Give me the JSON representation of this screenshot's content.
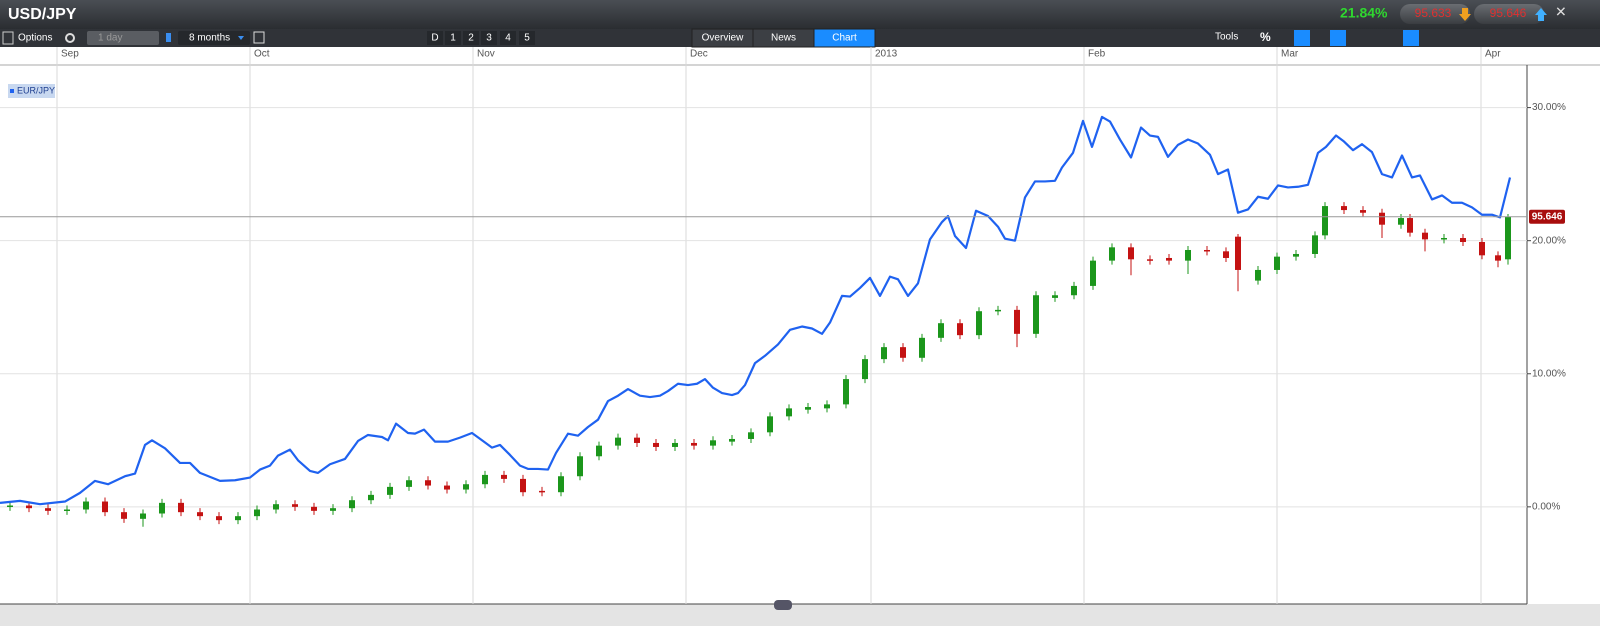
{
  "header": {
    "title": "USD/JPY",
    "change": "21.84%",
    "bid": "95.633",
    "ask": "95.646"
  },
  "toolbar": {
    "options": "Options",
    "interval": "1 day",
    "range": "8 months",
    "periods": [
      "D",
      "1",
      "2",
      "3",
      "4",
      "5"
    ],
    "tabs": [
      "Overview",
      "News",
      "Chart"
    ],
    "active_tab": "Chart",
    "tools": "Tools",
    "percent": "%"
  },
  "chart_data": {
    "type": "candlestick",
    "x": [
      1.0,
      2.9,
      4.8,
      6.7,
      8.6,
      10.5,
      12.4,
      14.3,
      16.2,
      18.1,
      20.0,
      21.9,
      23.8,
      25.7,
      27.6,
      29.5,
      31.4,
      33.3,
      35.2,
      37.1,
      39.0,
      40.9,
      42.8,
      44.7,
      46.6,
      48.5,
      50.4,
      52.3,
      54.2,
      56.1,
      58.0,
      59.9,
      61.8,
      63.7,
      65.6,
      67.5,
      69.4,
      71.3,
      73.2,
      75.1,
      77.0,
      78.9,
      80.8,
      82.7,
      84.6,
      86.5,
      88.4,
      90.3,
      92.2,
      94.1,
      96.0,
      97.9,
      99.8,
      101.7,
      103.6,
      105.5,
      107.4,
      109.3,
      111.2,
      113.1,
      115.0,
      116.9,
      118.8,
      120.7,
      122.6,
      123.8,
      125.8,
      127.7,
      129.6,
      131.5,
      132.5,
      134.4,
      136.3,
      138.2,
      140.1,
      141.0,
      142.5,
      144.4,
      146.3,
      148.2,
      149.8,
      150.8
    ],
    "open": [
      0.0,
      0.1,
      -0.1,
      -0.3,
      -0.2,
      0.4,
      -0.4,
      -0.9,
      -0.5,
      0.3,
      -0.4,
      -0.7,
      -1.0,
      -0.7,
      -0.2,
      0.2,
      0.0,
      -0.3,
      -0.1,
      0.5,
      0.9,
      1.5,
      2.0,
      1.6,
      1.3,
      1.7,
      2.4,
      2.1,
      1.2,
      1.1,
      2.3,
      3.8,
      4.6,
      5.2,
      4.8,
      4.5,
      4.8,
      4.6,
      4.9,
      5.1,
      5.6,
      6.8,
      7.3,
      7.4,
      7.7,
      9.6,
      11.1,
      12.0,
      11.2,
      12.7,
      13.8,
      12.9,
      14.7,
      14.8,
      13.0,
      15.7,
      15.9,
      16.6,
      18.5,
      19.5,
      18.6,
      18.7,
      18.5,
      19.3,
      19.2,
      20.3,
      17.0,
      17.8,
      18.8,
      19.0,
      20.4,
      22.6,
      22.3,
      22.1,
      21.2,
      21.7,
      20.6,
      20.1,
      20.2,
      19.9,
      18.9,
      18.6
    ],
    "high": [
      0.4,
      0.4,
      0.2,
      0.1,
      0.7,
      0.7,
      -0.1,
      -0.2,
      0.6,
      0.6,
      -0.1,
      -0.4,
      -0.4,
      0.1,
      0.5,
      0.5,
      0.3,
      0.2,
      0.8,
      1.2,
      1.8,
      2.3,
      2.3,
      1.9,
      2.0,
      2.7,
      2.7,
      2.4,
      1.5,
      2.6,
      4.1,
      4.9,
      5.5,
      5.5,
      5.1,
      5.1,
      5.1,
      5.3,
      5.4,
      5.9,
      7.1,
      7.7,
      7.8,
      8.0,
      9.9,
      11.4,
      12.3,
      12.3,
      13.0,
      14.1,
      14.1,
      15.0,
      15.1,
      15.1,
      16.2,
      16.2,
      16.9,
      18.8,
      19.8,
      19.8,
      18.9,
      19.0,
      19.6,
      19.6,
      19.5,
      20.5,
      18.1,
      19.1,
      19.3,
      20.7,
      22.9,
      22.9,
      22.6,
      22.4,
      22.0,
      22.0,
      20.9,
      20.5,
      20.5,
      20.2,
      19.2,
      22.0
    ],
    "low": [
      -0.3,
      -0.4,
      -0.6,
      -0.6,
      -0.5,
      -0.7,
      -1.2,
      -1.5,
      -0.8,
      -0.7,
      -1.0,
      -1.3,
      -1.3,
      -1.0,
      -0.5,
      -0.3,
      -0.6,
      -0.6,
      -0.4,
      0.2,
      0.6,
      1.2,
      1.3,
      1.0,
      1.0,
      1.4,
      1.8,
      0.8,
      0.8,
      0.8,
      2.0,
      3.5,
      4.3,
      4.5,
      4.2,
      4.2,
      4.3,
      4.3,
      4.6,
      4.8,
      5.3,
      6.5,
      7.0,
      7.1,
      7.4,
      9.3,
      10.8,
      10.9,
      10.9,
      12.4,
      12.6,
      12.6,
      14.4,
      12.0,
      12.7,
      15.4,
      15.6,
      16.3,
      18.2,
      17.4,
      18.2,
      18.2,
      17.5,
      18.9,
      18.4,
      16.2,
      16.7,
      17.5,
      18.5,
      18.7,
      20.1,
      22.0,
      21.8,
      20.2,
      20.9,
      20.3,
      19.2,
      19.8,
      19.6,
      18.6,
      18.0,
      18.2
    ],
    "close": [
      0.1,
      -0.1,
      -0.3,
      -0.2,
      0.4,
      -0.4,
      -0.9,
      -0.5,
      0.3,
      -0.4,
      -0.7,
      -1.0,
      -0.7,
      -0.2,
      0.2,
      0.0,
      -0.3,
      -0.1,
      0.5,
      0.9,
      1.5,
      2.0,
      1.6,
      1.3,
      1.7,
      2.4,
      2.1,
      1.1,
      1.1,
      2.3,
      3.8,
      4.6,
      5.2,
      4.8,
      4.5,
      4.8,
      4.6,
      5.0,
      5.1,
      5.6,
      6.8,
      7.4,
      7.5,
      7.7,
      9.6,
      11.1,
      12.0,
      11.2,
      12.7,
      13.8,
      12.9,
      14.7,
      14.8,
      13.0,
      15.9,
      15.9,
      16.6,
      18.5,
      19.5,
      18.6,
      18.5,
      18.5,
      19.3,
      19.2,
      18.7,
      17.8,
      17.8,
      18.8,
      19.0,
      20.4,
      22.6,
      22.3,
      22.1,
      21.2,
      21.7,
      20.6,
      20.1,
      20.2,
      19.9,
      18.9,
      18.5,
      21.8
    ],
    "up_color": "#1b961b",
    "down_color": "#c41212",
    "series": [
      {
        "name": "EUR/JPY",
        "color": "#1f62f0",
        "x": [
          0,
          2,
          4,
          6.5,
          8,
          9.5,
          10.8,
          12.5,
          13.5,
          14.5,
          15.2,
          16.5,
          18,
          19,
          20,
          22,
          23.5,
          25,
          26,
          27,
          27.8,
          29,
          29.8,
          31,
          31.8,
          33,
          34.5,
          35.8,
          36.8,
          38.2,
          38.8,
          39.6,
          40.8,
          41.5,
          42.4,
          43.5,
          44.8,
          46,
          47.2,
          48.3,
          49.2,
          50,
          51,
          52,
          52.8,
          53.8,
          54.8,
          55.6,
          56.8,
          57.8,
          58.8,
          59.8,
          60.8,
          61.8,
          62.8,
          64,
          65,
          66,
          66.8,
          67.8,
          68.8,
          69.7,
          70.5,
          71.3,
          72.2,
          73.2,
          73.8,
          74.5,
          75.5,
          76.5,
          77.8,
          79,
          80.2,
          81.2,
          82.2,
          83,
          84.2,
          85,
          86,
          87,
          88,
          89,
          89.8,
          90.8,
          91.8,
          93,
          94.2,
          94.8,
          95.5,
          96.6,
          97.6,
          98.8,
          99.8,
          100.5,
          101.5,
          102.5,
          103.5,
          104.5,
          105.5,
          106.2,
          107.3,
          108.3,
          109.2,
          110.2,
          111,
          112,
          113.1,
          114.1,
          115,
          115.8,
          116.8,
          117.8,
          118.8,
          119.8,
          121,
          121.8,
          122.8,
          123.8,
          124.8,
          125.8,
          126.8,
          127.8,
          128.8,
          129.8,
          130.8,
          131.8,
          132.6,
          133.6,
          134.4,
          135.3,
          136.2,
          137.2,
          138.2,
          139.2,
          140.2,
          141.2,
          142,
          143.2,
          144.2,
          145.2,
          146.2,
          147.2,
          148.2,
          149.2,
          150,
          151
        ],
        "values": [
          0.3,
          0.45,
          0.2,
          0.4,
          1.05,
          1.95,
          1.7,
          2.3,
          2.5,
          4.65,
          5.0,
          4.4,
          3.3,
          3.3,
          2.55,
          1.95,
          2.0,
          2.2,
          2.8,
          3.1,
          3.85,
          4.3,
          3.5,
          2.7,
          2.55,
          3.2,
          3.6,
          4.95,
          5.4,
          5.25,
          5.0,
          6.25,
          5.55,
          5.5,
          5.8,
          4.9,
          4.9,
          5.2,
          5.55,
          4.95,
          4.45,
          4.65,
          3.9,
          3.1,
          2.85,
          2.85,
          2.8,
          4.05,
          5.5,
          5.35,
          6.0,
          6.55,
          7.95,
          8.35,
          8.85,
          8.35,
          8.25,
          8.35,
          8.7,
          9.25,
          9.15,
          9.25,
          9.6,
          8.95,
          8.55,
          8.4,
          8.55,
          9.15,
          10.8,
          11.35,
          12.2,
          13.3,
          13.55,
          13.4,
          13.0,
          13.85,
          15.85,
          15.8,
          16.45,
          17.2,
          15.85,
          17.3,
          17.1,
          15.85,
          16.8,
          20.1,
          21.4,
          21.85,
          20.35,
          19.45,
          22.25,
          21.85,
          21.05,
          20.15,
          20.0,
          23.25,
          24.45,
          24.45,
          24.5,
          25.5,
          26.6,
          29.0,
          27.05,
          29.3,
          28.95,
          27.6,
          26.25,
          28.5,
          27.9,
          27.8,
          26.3,
          27.2,
          27.6,
          27.3,
          26.45,
          25.0,
          25.35,
          22.1,
          22.35,
          23.3,
          23.15,
          24.15,
          24.0,
          24.05,
          24.2,
          26.6,
          27.05,
          27.9,
          27.45,
          26.8,
          27.25,
          26.65,
          25.0,
          24.75,
          26.4,
          24.75,
          24.9,
          23.1,
          23.4,
          22.85,
          22.85,
          22.5,
          21.95,
          21.95,
          21.75,
          24.75
        ]
      }
    ],
    "xlim": [
      0,
      152.7
    ],
    "xticks": [
      {
        "value": 5.7,
        "label": "Sep"
      },
      {
        "value": 25,
        "label": "Oct"
      },
      {
        "value": 47.3,
        "label": "Nov"
      },
      {
        "value": 68.6,
        "label": "Dec"
      },
      {
        "value": 87.1,
        "label": "2013"
      },
      {
        "value": 108.4,
        "label": "Feb"
      },
      {
        "value": 127.7,
        "label": "Mar"
      },
      {
        "value": 148.1,
        "label": "Apr"
      }
    ],
    "ylim": [
      -7.3,
      33.2
    ],
    "yticks": [
      {
        "value": 0,
        "label": "0.00%"
      },
      {
        "value": 10,
        "label": "10.00%"
      },
      {
        "value": 20,
        "label": "20.00%"
      },
      {
        "value": 30,
        "label": "30.00%"
      }
    ],
    "grid": true,
    "last_price_label": "95.646"
  }
}
